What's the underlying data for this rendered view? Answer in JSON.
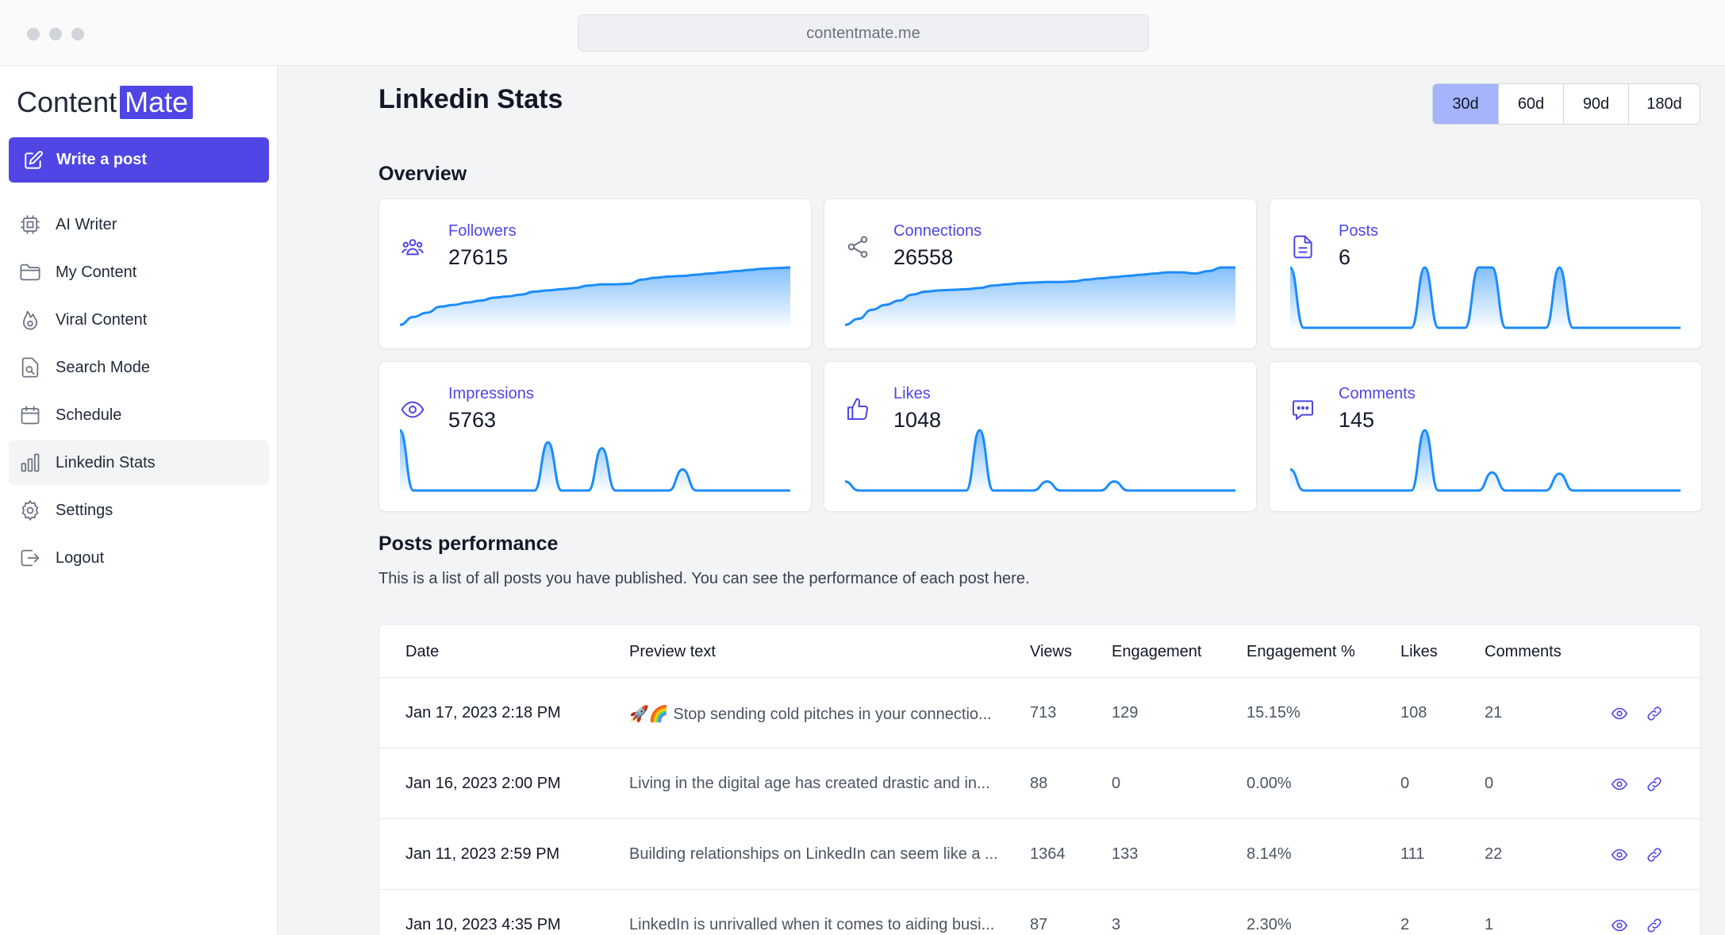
{
  "browser": {
    "url": "contentmate.me"
  },
  "sidebar": {
    "logo_text": "Content",
    "logo_badge": "Mate",
    "write_button": "Write a post",
    "items": [
      {
        "label": "AI Writer",
        "icon": "chip-icon"
      },
      {
        "label": "My Content",
        "icon": "folder-icon"
      },
      {
        "label": "Viral Content",
        "icon": "fire-icon"
      },
      {
        "label": "Search Mode",
        "icon": "document-search-icon"
      },
      {
        "label": "Schedule",
        "icon": "calendar-icon"
      },
      {
        "label": "Linkedin Stats",
        "icon": "bar-chart-icon",
        "active": true
      },
      {
        "label": "Settings",
        "icon": "gear-icon"
      },
      {
        "label": "Logout",
        "icon": "logout-icon"
      }
    ]
  },
  "header": {
    "title": "Linkedin Stats",
    "ranges": [
      "30d",
      "60d",
      "90d",
      "180d"
    ],
    "selected_range": "30d"
  },
  "overview": {
    "heading": "Overview",
    "accent_color": "#4f46e5",
    "line_color": "#1d8cf8",
    "cards": [
      {
        "label": "Followers",
        "value": "27615",
        "icon": "users-icon",
        "trend": [
          0.05,
          0.18,
          0.25,
          0.35,
          0.38,
          0.42,
          0.45,
          0.5,
          0.52,
          0.55,
          0.6,
          0.62,
          0.64,
          0.66,
          0.7,
          0.72,
          0.72,
          0.73,
          0.8,
          0.83,
          0.85,
          0.86,
          0.88,
          0.9,
          0.92,
          0.94,
          0.96,
          0.98,
          0.99,
          1.0
        ]
      },
      {
        "label": "Connections",
        "value": "26558",
        "icon": "share-icon",
        "trend": [
          0.05,
          0.15,
          0.3,
          0.38,
          0.45,
          0.55,
          0.6,
          0.62,
          0.63,
          0.64,
          0.66,
          0.7,
          0.72,
          0.74,
          0.75,
          0.76,
          0.76,
          0.77,
          0.8,
          0.82,
          0.84,
          0.86,
          0.88,
          0.9,
          0.92,
          0.92,
          0.9,
          0.94,
          1.0,
          1.0
        ]
      },
      {
        "label": "Posts",
        "value": "6",
        "icon": "document-icon",
        "trend": [
          1,
          0,
          0,
          0,
          0,
          0,
          0,
          0,
          0,
          0,
          1,
          0,
          0,
          0,
          1,
          1,
          0,
          0,
          0,
          0,
          1,
          0,
          0,
          0,
          0,
          0,
          0,
          0,
          0,
          0
        ]
      },
      {
        "label": "Impressions",
        "value": "5763",
        "icon": "eye-icon",
        "trend": [
          1,
          0,
          0,
          0,
          0,
          0,
          0,
          0,
          0,
          0,
          0,
          0.8,
          0,
          0,
          0,
          0.7,
          0,
          0,
          0,
          0,
          0,
          0.35,
          0,
          0,
          0,
          0,
          0,
          0,
          0,
          0
        ]
      },
      {
        "label": "Likes",
        "value": "1048",
        "icon": "thumbs-up-icon",
        "trend": [
          0.15,
          0,
          0,
          0,
          0,
          0,
          0,
          0,
          0,
          0,
          1,
          0,
          0,
          0,
          0,
          0.15,
          0,
          0,
          0,
          0,
          0.15,
          0,
          0,
          0,
          0,
          0,
          0,
          0,
          0,
          0
        ]
      },
      {
        "label": "Comments",
        "value": "145",
        "icon": "chat-icon",
        "trend": [
          0.35,
          0,
          0,
          0,
          0,
          0,
          0,
          0,
          0,
          0,
          1,
          0,
          0,
          0,
          0,
          0.3,
          0,
          0,
          0,
          0,
          0.28,
          0,
          0,
          0,
          0,
          0,
          0,
          0,
          0,
          0
        ]
      }
    ]
  },
  "performance": {
    "heading": "Posts performance",
    "description": "This is a list of all posts you have published. You can see the performance of each post here.",
    "columns": [
      "Date",
      "Preview text",
      "Views",
      "Engagement",
      "Engagement %",
      "Likes",
      "Comments"
    ],
    "rows": [
      {
        "date": "Jan 17, 2023 2:18 PM",
        "preview": "🚀🌈 Stop sending cold pitches in your connectio...",
        "views": "713",
        "engagement": "129",
        "engagement_pct": "15.15%",
        "likes": "108",
        "comments": "21"
      },
      {
        "date": "Jan 16, 2023 2:00 PM",
        "preview": "Living in the digital age has created drastic and in...",
        "views": "88",
        "engagement": "0",
        "engagement_pct": "0.00%",
        "likes": "0",
        "comments": "0"
      },
      {
        "date": "Jan 11, 2023 2:59 PM",
        "preview": "Building relationships on LinkedIn can seem like a ...",
        "views": "1364",
        "engagement": "133",
        "engagement_pct": "8.14%",
        "likes": "111",
        "comments": "22"
      },
      {
        "date": "Jan 10, 2023 4:35 PM",
        "preview": "LinkedIn is unrivalled when it comes to aiding busi...",
        "views": "87",
        "engagement": "3",
        "engagement_pct": "2.30%",
        "likes": "2",
        "comments": "1"
      }
    ]
  }
}
